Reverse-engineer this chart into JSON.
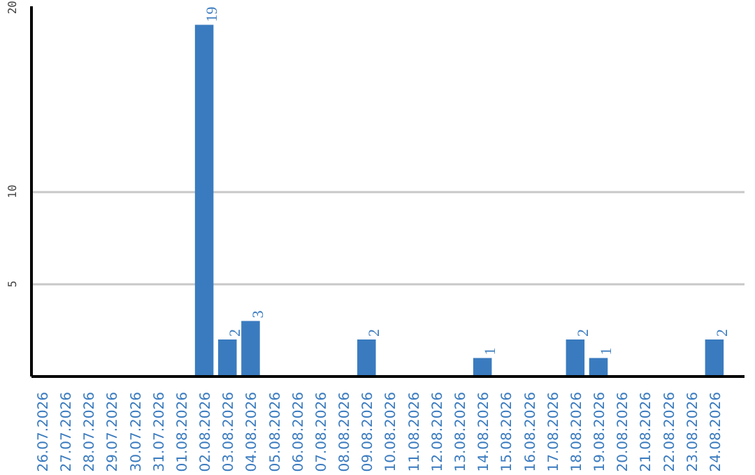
{
  "chart_data": {
    "type": "bar",
    "categories": [
      "26.07.2026",
      "27.07.2026",
      "28.07.2026",
      "29.07.2026",
      "30.07.2026",
      "31.07.2026",
      "01.08.2026",
      "02.08.2026",
      "03.08.2026",
      "04.08.2026",
      "05.08.2026",
      "06.08.2026",
      "07.08.2026",
      "08.08.2026",
      "09.08.2026",
      "10.08.2026",
      "11.08.2026",
      "12.08.2026",
      "13.08.2026",
      "14.08.2026",
      "15.08.2026",
      "16.08.2026",
      "17.08.2026",
      "18.08.2026",
      "19.08.2026",
      "20.08.2026",
      "21.08.2026",
      "22.08.2026",
      "23.08.2026",
      "24.08.2026"
    ],
    "values": [
      0,
      0,
      0,
      0,
      0,
      0,
      0,
      19,
      2,
      3,
      0,
      0,
      0,
      0,
      2,
      0,
      0,
      0,
      0,
      1,
      0,
      0,
      0,
      2,
      1,
      0,
      0,
      0,
      0,
      2
    ],
    "value_labels": [
      null,
      null,
      null,
      null,
      null,
      null,
      null,
      "19",
      "2",
      "3",
      null,
      null,
      null,
      null,
      "2",
      null,
      null,
      null,
      null,
      "1",
      null,
      null,
      null,
      "2",
      "1",
      null,
      null,
      null,
      null,
      "2"
    ],
    "color": "#3a7bbf",
    "ylim": [
      0,
      20
    ],
    "yticks": [
      5,
      10,
      20
    ],
    "grid": "y"
  }
}
